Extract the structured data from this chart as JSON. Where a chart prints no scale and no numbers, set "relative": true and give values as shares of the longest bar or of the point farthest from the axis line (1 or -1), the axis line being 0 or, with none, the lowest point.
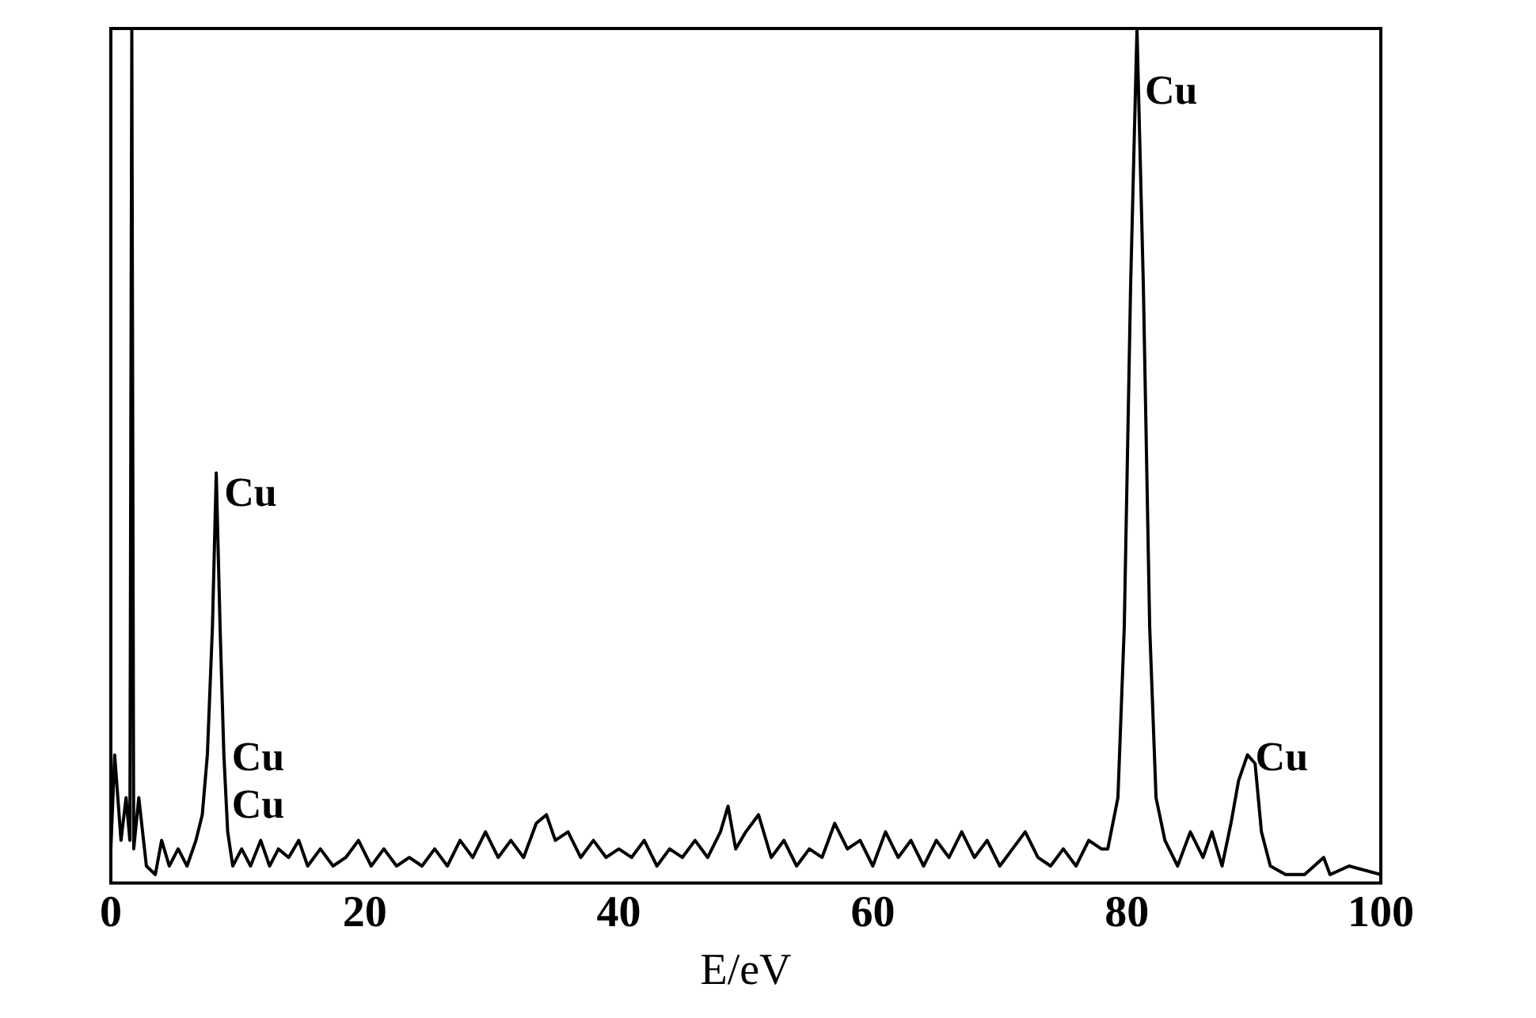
{
  "chart_data": {
    "type": "line",
    "xlabel": "E/eV",
    "relative": true,
    "xlim": [
      0,
      100
    ],
    "xticks": [
      0,
      20,
      40,
      60,
      80,
      100
    ],
    "series": [
      {
        "color": "#000000",
        "x": [
          0,
          0.3,
          0.8,
          1.2,
          1.5,
          1.65,
          1.8,
          2.2,
          2.8,
          3.5,
          4.0,
          4.6,
          5.3,
          6.0,
          6.7,
          7.2,
          7.6,
          8.0,
          8.3,
          8.6,
          8.9,
          9.2,
          9.6,
          10.3,
          11,
          11.8,
          12.5,
          13.2,
          14,
          14.8,
          15.5,
          16.5,
          17.5,
          18.5,
          19.5,
          20.5,
          21.5,
          22.5,
          23.5,
          24.5,
          25.5,
          26.5,
          27.5,
          28.5,
          29.5,
          30.5,
          31.5,
          32.5,
          33.5,
          34.3,
          35,
          36,
          37,
          38,
          39,
          40,
          41,
          42,
          43,
          44,
          45,
          46,
          47,
          48,
          48.6,
          49.2,
          50,
          51,
          52,
          53,
          54,
          55,
          56,
          57,
          58,
          59,
          60,
          61,
          62,
          63,
          64,
          65,
          66,
          67,
          68,
          69,
          70,
          71,
          72,
          73,
          74,
          75,
          76,
          77,
          78,
          78.5,
          79.3,
          79.8,
          80.3,
          80.8,
          81.3,
          81.8,
          82.3,
          83,
          84,
          85,
          86,
          86.7,
          87.5,
          88.2,
          88.8,
          89.5,
          90.1,
          90.6,
          91.3,
          92.5,
          94,
          95.5,
          96,
          97.5,
          100
        ],
        "values": [
          0.04,
          0.15,
          0.05,
          0.1,
          0.05,
          1.0,
          0.04,
          0.1,
          0.02,
          0.01,
          0.05,
          0.02,
          0.04,
          0.02,
          0.05,
          0.08,
          0.15,
          0.3,
          0.48,
          0.3,
          0.15,
          0.06,
          0.02,
          0.04,
          0.02,
          0.05,
          0.02,
          0.04,
          0.03,
          0.05,
          0.02,
          0.04,
          0.02,
          0.03,
          0.05,
          0.02,
          0.04,
          0.02,
          0.03,
          0.02,
          0.04,
          0.02,
          0.05,
          0.03,
          0.06,
          0.03,
          0.05,
          0.03,
          0.07,
          0.08,
          0.05,
          0.06,
          0.03,
          0.05,
          0.03,
          0.04,
          0.03,
          0.05,
          0.02,
          0.04,
          0.03,
          0.05,
          0.03,
          0.06,
          0.09,
          0.04,
          0.06,
          0.08,
          0.03,
          0.05,
          0.02,
          0.04,
          0.03,
          0.07,
          0.04,
          0.05,
          0.02,
          0.06,
          0.03,
          0.05,
          0.02,
          0.05,
          0.03,
          0.06,
          0.03,
          0.05,
          0.02,
          0.04,
          0.06,
          0.03,
          0.02,
          0.04,
          0.02,
          0.05,
          0.04,
          0.04,
          0.1,
          0.3,
          0.7,
          1.0,
          0.7,
          0.3,
          0.1,
          0.05,
          0.02,
          0.06,
          0.03,
          0.06,
          0.02,
          0.07,
          0.12,
          0.15,
          0.14,
          0.06,
          0.02,
          0.01,
          0.01,
          0.03,
          0.01,
          0.02,
          0.01
        ]
      }
    ],
    "annotations": [
      {
        "text": "Cu",
        "x": 8.3,
        "y": 0.43
      },
      {
        "text": "Cu",
        "x": 8.9,
        "y": 0.12
      },
      {
        "text": "Cu",
        "x": 8.9,
        "y": 0.065
      },
      {
        "text": "Cu",
        "x": 80.8,
        "y": 0.9
      },
      {
        "text": "Cu",
        "x": 89.5,
        "y": 0.12
      }
    ]
  }
}
